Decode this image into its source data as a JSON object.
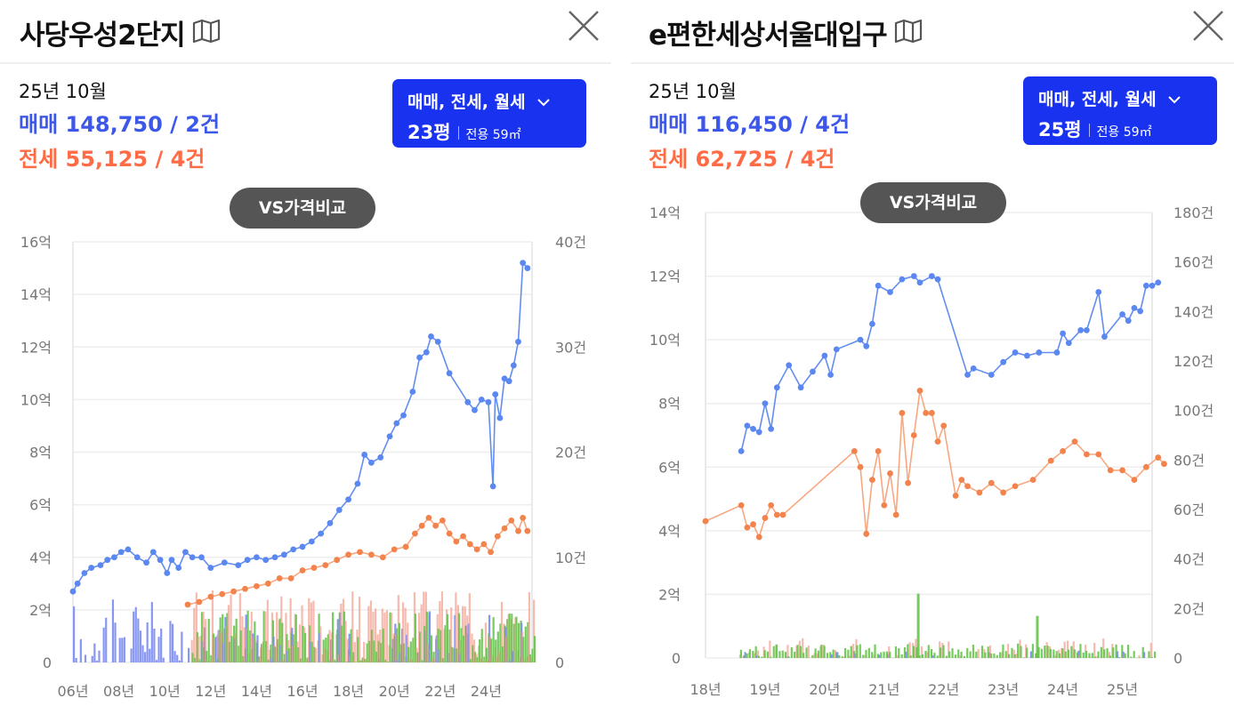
{
  "left": {
    "title": "사당우성2단지",
    "date": "25년 10월",
    "sale_label": "매매 148,750 / 2건",
    "jeonse_label": "전세 55,125 / 4건",
    "filter": {
      "types": "매매, 전세, 월세",
      "pyeong": "23평",
      "area": "전용 59㎡"
    },
    "vs_label": "VS가격비교"
  },
  "right": {
    "title": "e편한세상서울대입구",
    "date": "25년 10월",
    "sale_label": "매매 116,450 / 4건",
    "jeonse_label": "전세 62,725 / 4건",
    "filter": {
      "types": "매매, 전세, 월세",
      "pyeong": "25평",
      "area": "전용 59㎡"
    },
    "vs_label": "VS가격비교"
  },
  "colors": {
    "sale": "#5b87f0",
    "jeonse": "#f3834c",
    "bar_sale": "#7b8cf2",
    "bar_jeonse": "#f4a393",
    "bar_wolse": "#5ec243",
    "accent": "#1832f0",
    "sale_text": "#3d57e8",
    "jeonse_text": "#ff6b45"
  },
  "chart_data": [
    {
      "type": "line",
      "y_unit": "억",
      "ylim": [
        0,
        16
      ],
      "yticks": [
        "0",
        "2억",
        "4억",
        "6억",
        "8억",
        "10억",
        "12억",
        "14억",
        "16억"
      ],
      "y2lim": [
        0,
        40
      ],
      "y2ticks": [
        "0",
        "10건",
        "20건",
        "30건",
        "40건"
      ],
      "xlim": [
        2006,
        2026
      ],
      "xticks": [
        "06년",
        "08년",
        "10년",
        "12년",
        "14년",
        "16년",
        "18년",
        "20년",
        "22년",
        "24년"
      ],
      "grid": true,
      "series": [
        {
          "name": "매매",
          "points": [
            [
              2006.0,
              2.7
            ],
            [
              2006.2,
              3.0
            ],
            [
              2006.5,
              3.4
            ],
            [
              2006.8,
              3.6
            ],
            [
              2007.2,
              3.7
            ],
            [
              2007.5,
              3.9
            ],
            [
              2007.8,
              4.0
            ],
            [
              2008.1,
              4.2
            ],
            [
              2008.4,
              4.3
            ],
            [
              2008.8,
              4.0
            ],
            [
              2009.2,
              3.8
            ],
            [
              2009.5,
              4.2
            ],
            [
              2009.8,
              3.9
            ],
            [
              2010.1,
              3.4
            ],
            [
              2010.3,
              3.9
            ],
            [
              2010.6,
              3.6
            ],
            [
              2010.9,
              4.2
            ],
            [
              2011.2,
              4.0
            ],
            [
              2011.6,
              4.0
            ],
            [
              2012.0,
              3.6
            ],
            [
              2012.6,
              3.8
            ],
            [
              2013.2,
              3.7
            ],
            [
              2013.6,
              3.9
            ],
            [
              2014.0,
              4.0
            ],
            [
              2014.4,
              3.9
            ],
            [
              2014.8,
              4.0
            ],
            [
              2015.2,
              4.1
            ],
            [
              2015.6,
              4.3
            ],
            [
              2016.0,
              4.4
            ],
            [
              2016.4,
              4.6
            ],
            [
              2016.8,
              4.9
            ],
            [
              2017.2,
              5.3
            ],
            [
              2017.6,
              5.8
            ],
            [
              2018.0,
              6.2
            ],
            [
              2018.4,
              6.8
            ],
            [
              2018.7,
              7.9
            ],
            [
              2019.0,
              7.6
            ],
            [
              2019.4,
              7.8
            ],
            [
              2019.8,
              8.6
            ],
            [
              2020.1,
              9.1
            ],
            [
              2020.4,
              9.4
            ],
            [
              2020.8,
              10.3
            ],
            [
              2021.1,
              11.6
            ],
            [
              2021.4,
              11.8
            ],
            [
              2021.6,
              12.4
            ],
            [
              2021.9,
              12.2
            ],
            [
              2022.4,
              11.0
            ],
            [
              2023.2,
              9.9
            ],
            [
              2023.5,
              9.6
            ],
            [
              2023.8,
              10.0
            ],
            [
              2024.1,
              9.9
            ],
            [
              2024.3,
              6.7
            ],
            [
              2024.4,
              10.2
            ],
            [
              2024.6,
              9.3
            ],
            [
              2024.8,
              10.8
            ],
            [
              2025.0,
              10.7
            ],
            [
              2025.2,
              11.3
            ],
            [
              2025.4,
              12.2
            ],
            [
              2025.6,
              15.2
            ],
            [
              2025.8,
              15.0
            ]
          ]
        },
        {
          "name": "전세",
          "points": [
            [
              2011.0,
              2.2
            ],
            [
              2011.5,
              2.3
            ],
            [
              2012.0,
              2.5
            ],
            [
              2012.5,
              2.6
            ],
            [
              2013.0,
              2.7
            ],
            [
              2013.5,
              2.8
            ],
            [
              2014.0,
              2.9
            ],
            [
              2014.5,
              3.0
            ],
            [
              2015.0,
              3.2
            ],
            [
              2015.5,
              3.2
            ],
            [
              2016.0,
              3.5
            ],
            [
              2016.5,
              3.6
            ],
            [
              2017.0,
              3.7
            ],
            [
              2017.5,
              3.9
            ],
            [
              2018.0,
              4.1
            ],
            [
              2018.5,
              4.2
            ],
            [
              2019.0,
              4.1
            ],
            [
              2019.5,
              4.0
            ],
            [
              2020.0,
              4.3
            ],
            [
              2020.5,
              4.4
            ],
            [
              2020.9,
              4.9
            ],
            [
              2021.2,
              5.2
            ],
            [
              2021.5,
              5.5
            ],
            [
              2021.8,
              5.2
            ],
            [
              2022.1,
              5.4
            ],
            [
              2022.4,
              4.9
            ],
            [
              2022.7,
              4.6
            ],
            [
              2023.0,
              4.8
            ],
            [
              2023.3,
              4.5
            ],
            [
              2023.6,
              4.3
            ],
            [
              2023.9,
              4.5
            ],
            [
              2024.2,
              4.2
            ],
            [
              2024.5,
              4.8
            ],
            [
              2024.8,
              5.1
            ],
            [
              2025.1,
              5.4
            ],
            [
              2025.4,
              5.0
            ],
            [
              2025.6,
              5.5
            ],
            [
              2025.8,
              5.0
            ]
          ]
        }
      ]
    },
    {
      "type": "line",
      "y_unit": "억",
      "ylim": [
        0,
        14
      ],
      "yticks": [
        "0",
        "2억",
        "4억",
        "6억",
        "8억",
        "10억",
        "12억",
        "14억"
      ],
      "y2lim": [
        0,
        180
      ],
      "y2ticks": [
        "0",
        "20건",
        "40건",
        "60건",
        "80건",
        "100건",
        "120건",
        "140건",
        "160건",
        "180건"
      ],
      "xlim": [
        2018,
        2025.5
      ],
      "xticks": [
        "18년",
        "19년",
        "20년",
        "21년",
        "22년",
        "23년",
        "24년",
        "25년"
      ],
      "grid": true,
      "series": [
        {
          "name": "매매",
          "points": [
            [
              2018.6,
              6.5
            ],
            [
              2018.7,
              7.3
            ],
            [
              2018.8,
              7.2
            ],
            [
              2018.9,
              7.1
            ],
            [
              2019.0,
              8.0
            ],
            [
              2019.1,
              7.2
            ],
            [
              2019.2,
              8.5
            ],
            [
              2019.4,
              9.2
            ],
            [
              2019.6,
              8.5
            ],
            [
              2019.8,
              9.0
            ],
            [
              2020.0,
              9.5
            ],
            [
              2020.1,
              8.9
            ],
            [
              2020.2,
              9.7
            ],
            [
              2020.6,
              10.0
            ],
            [
              2020.7,
              9.8
            ],
            [
              2020.8,
              10.5
            ],
            [
              2020.9,
              11.7
            ],
            [
              2021.1,
              11.5
            ],
            [
              2021.3,
              11.9
            ],
            [
              2021.5,
              12.0
            ],
            [
              2021.6,
              11.8
            ],
            [
              2021.8,
              12.0
            ],
            [
              2021.9,
              11.9
            ],
            [
              2022.4,
              8.9
            ],
            [
              2022.5,
              9.1
            ],
            [
              2022.8,
              8.9
            ],
            [
              2023.0,
              9.3
            ],
            [
              2023.2,
              9.6
            ],
            [
              2023.4,
              9.5
            ],
            [
              2023.6,
              9.6
            ],
            [
              2023.9,
              9.6
            ],
            [
              2024.0,
              10.2
            ],
            [
              2024.1,
              9.9
            ],
            [
              2024.3,
              10.3
            ],
            [
              2024.4,
              10.3
            ],
            [
              2024.6,
              11.5
            ],
            [
              2024.7,
              10.1
            ],
            [
              2025.0,
              10.8
            ],
            [
              2025.1,
              10.6
            ],
            [
              2025.2,
              11.0
            ],
            [
              2025.3,
              10.9
            ],
            [
              2025.4,
              11.7
            ],
            [
              2025.5,
              11.7
            ],
            [
              2025.6,
              11.8
            ]
          ]
        },
        {
          "name": "전세",
          "points": [
            [
              2018.0,
              4.3
            ],
            [
              2018.6,
              4.8
            ],
            [
              2018.7,
              4.1
            ],
            [
              2018.8,
              4.2
            ],
            [
              2018.9,
              3.8
            ],
            [
              2019.0,
              4.4
            ],
            [
              2019.1,
              4.8
            ],
            [
              2019.2,
              4.5
            ],
            [
              2019.3,
              4.5
            ],
            [
              2020.5,
              6.5
            ],
            [
              2020.6,
              6.0
            ],
            [
              2020.7,
              3.9
            ],
            [
              2020.8,
              5.6
            ],
            [
              2020.9,
              6.5
            ],
            [
              2021.0,
              4.8
            ],
            [
              2021.1,
              5.8
            ],
            [
              2021.2,
              4.5
            ],
            [
              2021.3,
              7.7
            ],
            [
              2021.4,
              5.5
            ],
            [
              2021.5,
              7.0
            ],
            [
              2021.6,
              8.4
            ],
            [
              2021.7,
              7.7
            ],
            [
              2021.8,
              7.7
            ],
            [
              2021.9,
              6.8
            ],
            [
              2022.0,
              7.3
            ],
            [
              2022.2,
              5.1
            ],
            [
              2022.3,
              5.6
            ],
            [
              2022.4,
              5.4
            ],
            [
              2022.6,
              5.2
            ],
            [
              2022.8,
              5.5
            ],
            [
              2023.0,
              5.2
            ],
            [
              2023.2,
              5.4
            ],
            [
              2023.5,
              5.6
            ],
            [
              2023.8,
              6.2
            ],
            [
              2024.0,
              6.5
            ],
            [
              2024.2,
              6.8
            ],
            [
              2024.4,
              6.4
            ],
            [
              2024.6,
              6.4
            ],
            [
              2024.8,
              5.9
            ],
            [
              2025.0,
              5.9
            ],
            [
              2025.2,
              5.6
            ],
            [
              2025.4,
              6.0
            ],
            [
              2025.6,
              6.3
            ],
            [
              2025.7,
              6.1
            ]
          ]
        }
      ]
    }
  ]
}
